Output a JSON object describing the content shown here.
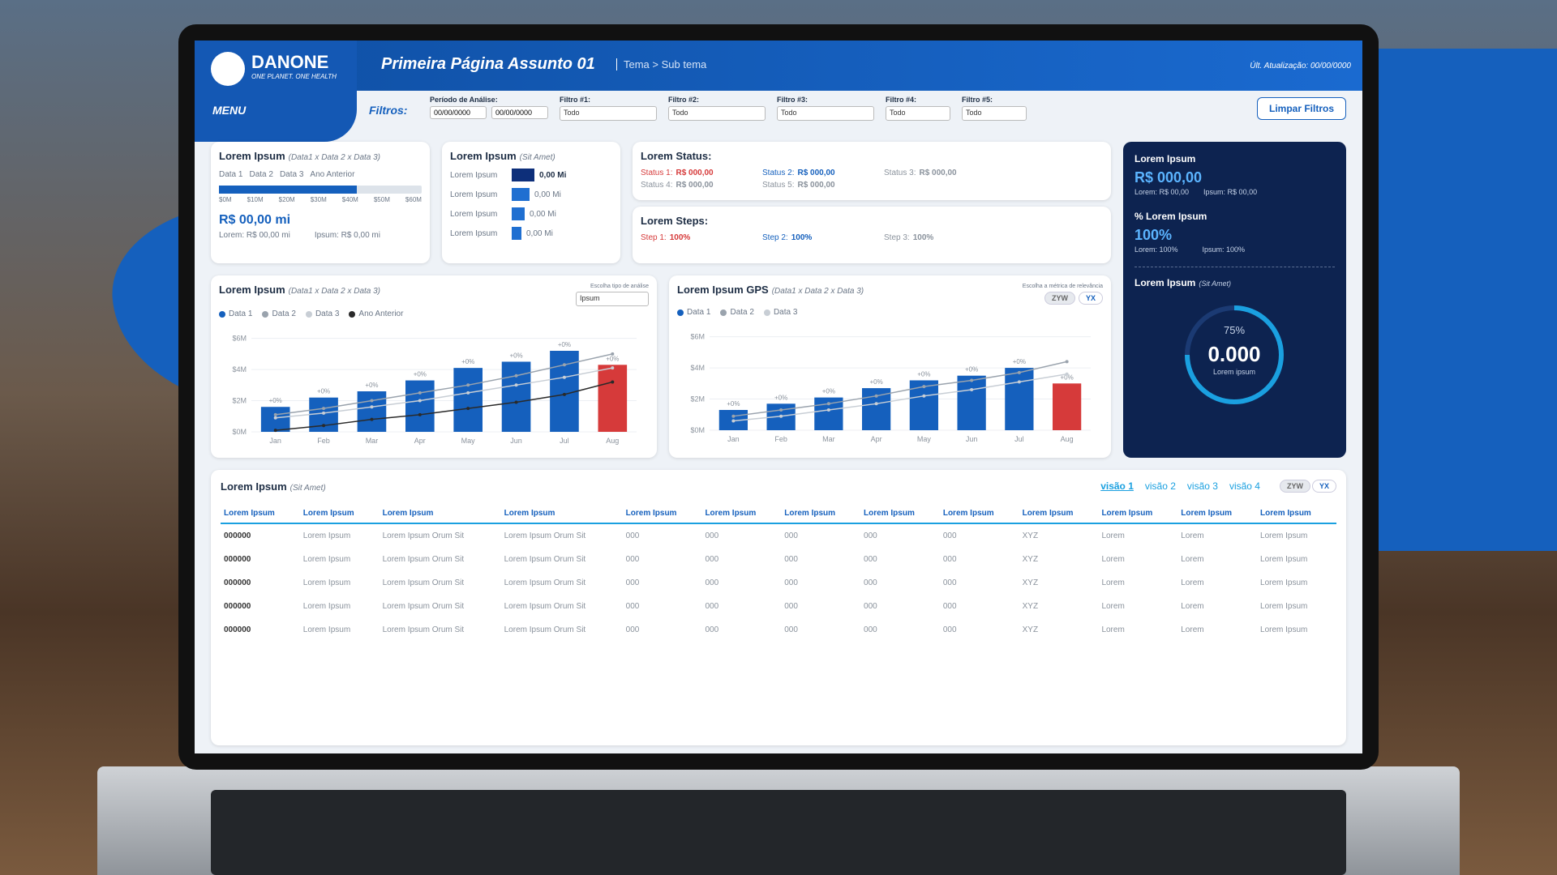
{
  "header": {
    "brand": "DANONE",
    "tagline": "ONE PLANET. ONE HEALTH",
    "title": "Primeira Página Assunto 01",
    "breadcrumb": "Tema > Sub tema",
    "updated": "Últ. Atualização: 00/00/0000",
    "menu": "MENU"
  },
  "filters": {
    "label": "Filtros:",
    "period_label": "Período de Análise:",
    "dates": [
      "00/00/0000",
      "00/00/0000"
    ],
    "items": [
      {
        "label": "Filtro #1:",
        "value": "Todo"
      },
      {
        "label": "Filtro #2:",
        "value": "Todo"
      },
      {
        "label": "Filtro #3:",
        "value": "Todo"
      },
      {
        "label": "Filtro #4:",
        "value": "Todo"
      },
      {
        "label": "Filtro #5:",
        "value": "Todo"
      }
    ],
    "clear": "Limpar Filtros"
  },
  "card_a": {
    "title": "Lorem Ipsum",
    "subtitle": "(Data1 x Data 2 x Data 3)",
    "legend": [
      "Data 1",
      "Data 2",
      "Data 3",
      "Ano Anterior"
    ],
    "scale": [
      "$0M",
      "$10M",
      "$20M",
      "$30M",
      "$40M",
      "$50M",
      "$60M"
    ],
    "value": "R$ 00,00 mi",
    "lorem": "Lorem: R$ 00,00 mi",
    "ipsum": "Ipsum: R$ 0,00 mi"
  },
  "card_b": {
    "title": "Lorem Ipsum",
    "subtitle": "(Sit Amet)",
    "rows": [
      {
        "label": "Lorem Ipsum",
        "value": "0,00 Mi"
      },
      {
        "label": "Lorem Ipsum",
        "value": "0,00 Mi"
      },
      {
        "label": "Lorem Ipsum",
        "value": "0,00 Mi"
      },
      {
        "label": "Lorem Ipsum",
        "value": "0,00 Mi"
      }
    ]
  },
  "status": {
    "title": "Lorem Status:",
    "items": [
      {
        "label": "Status 1:",
        "value": "R$ 000,00"
      },
      {
        "label": "Status 2:",
        "value": "R$ 000,00"
      },
      {
        "label": "Status 3:",
        "value": "R$ 000,00"
      },
      {
        "label": "Status 4:",
        "value": "R$ 000,00"
      },
      {
        "label": "Status 5:",
        "value": "R$ 000,00"
      }
    ]
  },
  "steps": {
    "title": "Lorem Steps:",
    "items": [
      {
        "label": "Step 1:",
        "value": "100%"
      },
      {
        "label": "Step 2:",
        "value": "100%"
      },
      {
        "label": "Step 3:",
        "value": "100%"
      }
    ]
  },
  "panel": {
    "title": "Lorem Ipsum",
    "value": "R$ 000,00",
    "lorem": "Lorem: R$ 00,00",
    "ipsum": "Ipsum: R$ 00,00",
    "pct_title": "% Lorem Ipsum",
    "pct_value": "100%",
    "pct_lorem": "Lorem: 100%",
    "pct_ipsum": "Ipsum: 100%",
    "gauge_title": "Lorem Ipsum",
    "gauge_subtitle": "(Sit Amet)",
    "gauge": {
      "value": 75,
      "label": "75%"
    },
    "gauge_number": "0.000",
    "gauge_caption": "Lorem ipsum"
  },
  "charts": [
    {
      "type": "bar",
      "title": "Lorem Ipsum",
      "subtitle": "(Data1 x Data 2 x Data 3)",
      "control_label": "Escolha tipo de análise",
      "control_value": "Ipsum",
      "categories": [
        "Jan",
        "Feb",
        "Mar",
        "Apr",
        "May",
        "Jun",
        "Jul",
        "Aug"
      ],
      "series": [
        {
          "name": "Data 1",
          "color": "#1560bd",
          "bar_colors": [
            "#1560bd",
            "#1560bd",
            "#1560bd",
            "#1560bd",
            "#1560bd",
            "#1560bd",
            "#1560bd",
            "#d63a3a"
          ],
          "values": [
            1.6,
            2.2,
            2.6,
            3.3,
            4.1,
            4.5,
            5.2,
            4.3
          ]
        },
        {
          "name": "Data 2",
          "color": "#9aa3ad",
          "values": [
            1.1,
            1.5,
            2.0,
            2.5,
            3.0,
            3.6,
            4.3,
            5.0
          ]
        },
        {
          "name": "Data 3",
          "color": "#c8ced5",
          "values": [
            0.9,
            1.2,
            1.6,
            2.0,
            2.5,
            3.0,
            3.5,
            4.1
          ]
        },
        {
          "name": "Ano Anterior",
          "color": "#2a2a2a",
          "values": [
            0.1,
            0.4,
            0.8,
            1.1,
            1.5,
            1.9,
            2.4,
            3.2
          ]
        }
      ],
      "annotations": [
        "+0%",
        "+0%",
        "+0%",
        "+0%",
        "+0%",
        "+0%",
        "+0%",
        "+0%"
      ],
      "ylim": [
        0,
        6.5
      ],
      "yticks": [
        {
          "value": 0,
          "label": "$0M"
        },
        {
          "value": 2,
          "label": "$2M"
        },
        {
          "value": 4,
          "label": "$4M"
        },
        {
          "value": 6,
          "label": "$6M"
        }
      ]
    },
    {
      "type": "bar",
      "title": "Lorem Ipsum GPS",
      "subtitle": "(Data1 x Data 2 x Data 3)",
      "control_label": "Escolha a métrica de relevância",
      "toggle": [
        "ZYW",
        "YX"
      ],
      "categories": [
        "Jan",
        "Feb",
        "Mar",
        "Apr",
        "May",
        "Jun",
        "Jul",
        "Aug"
      ],
      "series": [
        {
          "name": "Data 1",
          "color": "#1560bd",
          "bar_colors": [
            "#1560bd",
            "#1560bd",
            "#1560bd",
            "#1560bd",
            "#1560bd",
            "#1560bd",
            "#1560bd",
            "#d63a3a"
          ],
          "values": [
            1.3,
            1.7,
            2.1,
            2.7,
            3.2,
            3.5,
            4.0,
            3.0
          ]
        },
        {
          "name": "Data 2",
          "color": "#9aa3ad",
          "values": [
            0.9,
            1.3,
            1.7,
            2.2,
            2.8,
            3.2,
            3.7,
            4.4
          ]
        },
        {
          "name": "Data 3",
          "color": "#c8ced5",
          "values": [
            0.6,
            0.9,
            1.3,
            1.7,
            2.2,
            2.6,
            3.1,
            3.6
          ]
        }
      ],
      "annotations": [
        "+0%",
        "+0%",
        "+0%",
        "+0%",
        "+0%",
        "+0%",
        "+0%",
        "+0%"
      ],
      "ylim": [
        0,
        6.5
      ],
      "yticks": [
        {
          "value": 0,
          "label": "$0M"
        },
        {
          "value": 2,
          "label": "$2M"
        },
        {
          "value": 4,
          "label": "$4M"
        },
        {
          "value": 6,
          "label": "$6M"
        }
      ]
    }
  ],
  "table": {
    "title": "Lorem Ipsum",
    "subtitle": "(Sit Amet)",
    "views": [
      "visão 1",
      "visão 2",
      "visão 3",
      "visão 4"
    ],
    "toggle": [
      "ZYW",
      "YX"
    ],
    "header": [
      "Lorem Ipsum",
      "Lorem Ipsum",
      "Lorem Ipsum",
      "Lorem Ipsum",
      "Lorem Ipsum",
      "Lorem Ipsum",
      "Lorem Ipsum",
      "Lorem Ipsum",
      "Lorem Ipsum",
      "Lorem Ipsum",
      "Lorem Ipsum",
      "Lorem Ipsum",
      "Lorem Ipsum"
    ],
    "rows": [
      [
        "000000",
        "Lorem Ipsum",
        "Lorem Ipsum Orum Sit",
        "Lorem Ipsum Orum Sit",
        "000",
        "000",
        "000",
        "000",
        "000",
        "XYZ",
        "Lorem",
        "Lorem",
        "Lorem Ipsum"
      ],
      [
        "000000",
        "Lorem Ipsum",
        "Lorem Ipsum Orum Sit",
        "Lorem Ipsum Orum Sit",
        "000",
        "000",
        "000",
        "000",
        "000",
        "XYZ",
        "Lorem",
        "Lorem",
        "Lorem Ipsum"
      ],
      [
        "000000",
        "Lorem Ipsum",
        "Lorem Ipsum Orum Sit",
        "Lorem Ipsum Orum Sit",
        "000",
        "000",
        "000",
        "000",
        "000",
        "XYZ",
        "Lorem",
        "Lorem",
        "Lorem Ipsum"
      ],
      [
        "000000",
        "Lorem Ipsum",
        "Lorem Ipsum Orum Sit",
        "Lorem Ipsum Orum Sit",
        "000",
        "000",
        "000",
        "000",
        "000",
        "XYZ",
        "Lorem",
        "Lorem",
        "Lorem Ipsum"
      ],
      [
        "000000",
        "Lorem Ipsum",
        "Lorem Ipsum Orum Sit",
        "Lorem Ipsum Orum Sit",
        "000",
        "000",
        "000",
        "000",
        "000",
        "XYZ",
        "Lorem",
        "Lorem",
        "Lorem Ipsum"
      ]
    ]
  }
}
